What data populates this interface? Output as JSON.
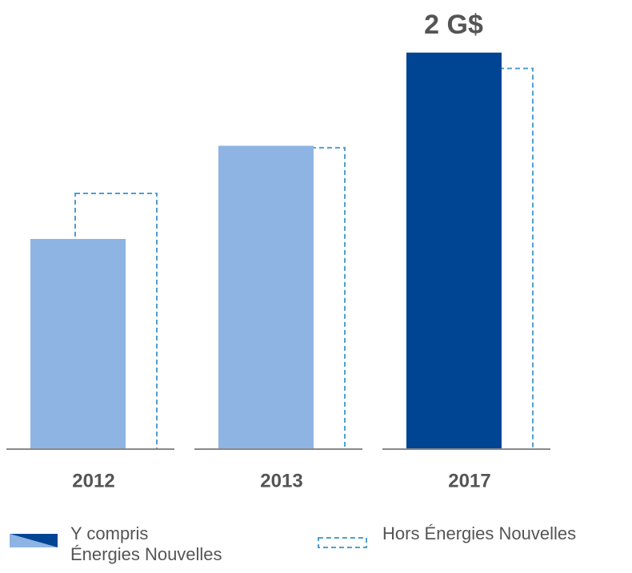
{
  "chart_data": {
    "type": "bar",
    "categories": [
      "2012",
      "2013",
      "2017"
    ],
    "series": [
      {
        "name": "Y compris\nÉnergies Nouvelles",
        "colors": [
          "#8eb4e3",
          "#8eb4e3",
          "#004494"
        ],
        "values": [
          1.06,
          1.53,
          2
        ],
        "value_labels": [
          null,
          null,
          "2 G$"
        ]
      },
      {
        "name": "Hors Énergies Nouvelles",
        "color": "#4f9fd1",
        "dashed": true,
        "values": [
          1.29,
          1.52,
          1.92
        ]
      }
    ],
    "ylim": [
      0,
      2.1
    ]
  }
}
